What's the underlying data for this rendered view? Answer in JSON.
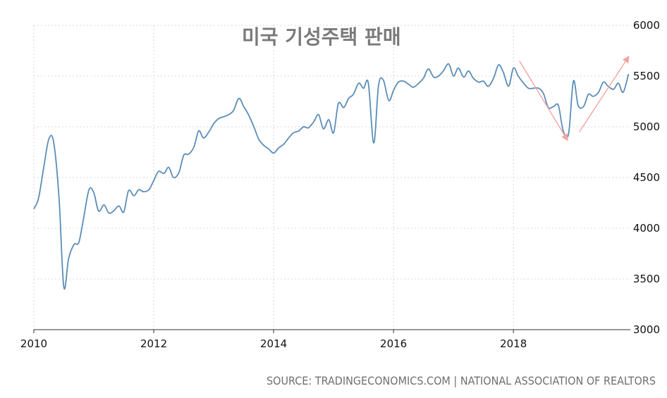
{
  "chart_data": {
    "type": "line",
    "title": "미국 기성주택 판매",
    "source": "SOURCE: TRADINGECONOMICS.COM | NATIONAL ASSOCIATION OF REALTORS",
    "xlim": [
      2010.0,
      2019.95
    ],
    "ylim": [
      3000,
      6000
    ],
    "x_ticks": [
      2010,
      2012,
      2014,
      2016,
      2018
    ],
    "y_ticks": [
      3000,
      3500,
      4000,
      4500,
      5000,
      5500,
      6000
    ],
    "grid": true,
    "line_color": "#5b8db8",
    "annotation_color": "#f4a3a3",
    "series": [
      {
        "x": [
          2010.0,
          2010.08,
          2010.17,
          2010.25,
          2010.33,
          2010.42,
          2010.5,
          2010.58,
          2010.67,
          2010.75,
          2010.83,
          2010.92,
          2011.0,
          2011.08,
          2011.17,
          2011.25,
          2011.33,
          2011.42,
          2011.5,
          2011.58,
          2011.67,
          2011.75,
          2011.83,
          2011.92,
          2012.0,
          2012.08,
          2012.17,
          2012.25,
          2012.33,
          2012.42,
          2012.5,
          2012.58,
          2012.67,
          2012.75,
          2012.83,
          2012.92,
          2013.0,
          2013.08,
          2013.17,
          2013.25,
          2013.33,
          2013.42,
          2013.5,
          2013.58,
          2013.67,
          2013.75,
          2013.83,
          2013.92,
          2014.0,
          2014.08,
          2014.17,
          2014.25,
          2014.33,
          2014.42,
          2014.5,
          2014.58,
          2014.67,
          2014.75,
          2014.83,
          2014.92,
          2015.0,
          2015.08,
          2015.17,
          2015.25,
          2015.33,
          2015.42,
          2015.5,
          2015.58,
          2015.67,
          2015.75,
          2015.83,
          2015.92,
          2016.0,
          2016.08,
          2016.17,
          2016.25,
          2016.33,
          2016.42,
          2016.5,
          2016.58,
          2016.67,
          2016.75,
          2016.83,
          2016.92,
          2017.0,
          2017.08,
          2017.17,
          2017.25,
          2017.33,
          2017.42,
          2017.5,
          2017.58,
          2017.67,
          2017.75,
          2017.83,
          2017.92,
          2018.0,
          2018.08,
          2018.17,
          2018.25,
          2018.33,
          2018.42,
          2018.5,
          2018.58,
          2018.67,
          2018.75,
          2018.83,
          2018.92,
          2019.0,
          2019.08,
          2019.17,
          2019.25,
          2019.33,
          2019.42,
          2019.5,
          2019.58,
          2019.67,
          2019.75,
          2019.83,
          2019.92
        ],
        "values": [
          4190,
          4300,
          4620,
          4880,
          4850,
          4300,
          3420,
          3700,
          3840,
          3860,
          4100,
          4380,
          4350,
          4170,
          4230,
          4150,
          4170,
          4220,
          4160,
          4370,
          4320,
          4380,
          4360,
          4380,
          4470,
          4560,
          4540,
          4600,
          4500,
          4550,
          4720,
          4730,
          4800,
          4960,
          4890,
          4950,
          5030,
          5080,
          5100,
          5120,
          5160,
          5280,
          5200,
          5120,
          5000,
          4880,
          4820,
          4780,
          4740,
          4790,
          4830,
          4890,
          4940,
          4960,
          5000,
          4990,
          5050,
          5120,
          4980,
          5070,
          4940,
          5230,
          5190,
          5280,
          5320,
          5430,
          5380,
          5430,
          4840,
          5410,
          5460,
          5260,
          5360,
          5440,
          5450,
          5420,
          5390,
          5430,
          5480,
          5570,
          5490,
          5500,
          5550,
          5620,
          5500,
          5580,
          5490,
          5550,
          5480,
          5440,
          5450,
          5400,
          5480,
          5610,
          5540,
          5400,
          5580,
          5500,
          5430,
          5380,
          5380,
          5380,
          5330,
          5190,
          5200,
          5210,
          4960,
          4930,
          5450,
          5210,
          5200,
          5320,
          5300,
          5340,
          5440,
          5400,
          5370,
          5430,
          5340,
          5520
        ]
      }
    ],
    "annotations": [
      {
        "type": "arrow",
        "from": [
          2018.1,
          5650
        ],
        "to": [
          2018.9,
          4870
        ]
      },
      {
        "type": "arrow",
        "from": [
          2019.1,
          4950
        ],
        "to": [
          2019.92,
          5690
        ]
      }
    ]
  }
}
